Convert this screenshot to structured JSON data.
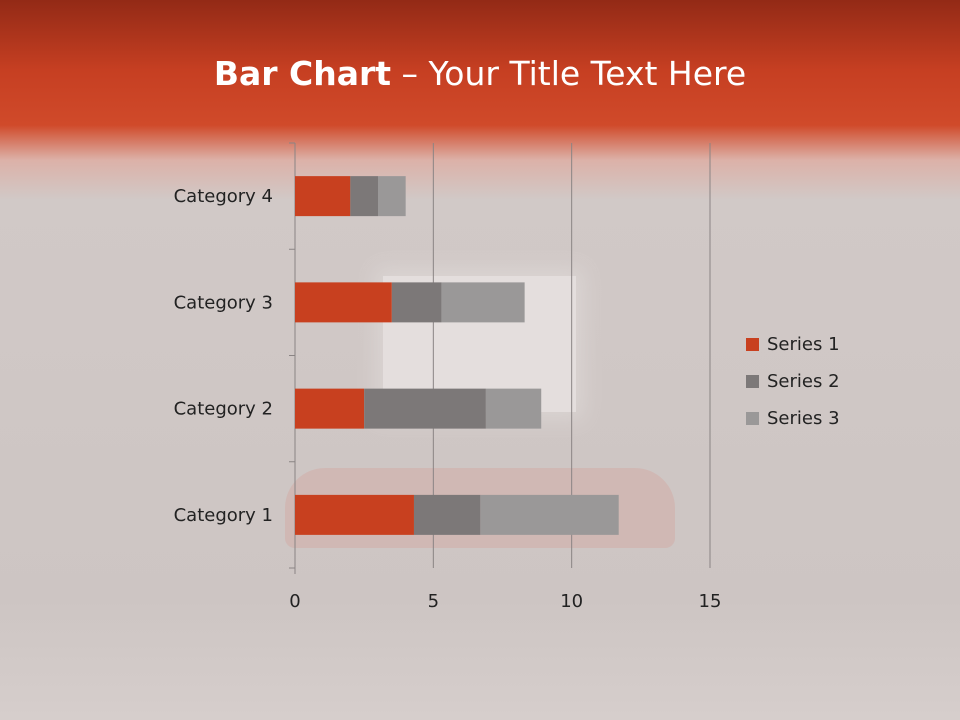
{
  "title": {
    "bold": "Bar Chart",
    "rest": " – Your Title Text Here"
  },
  "chart_data": {
    "type": "bar",
    "orientation": "horizontal",
    "stacked": true,
    "categories": [
      "Category 1",
      "Category 2",
      "Category 3",
      "Category 4"
    ],
    "series": [
      {
        "name": "Series 1",
        "values": [
          4.3,
          2.5,
          3.5,
          2
        ],
        "color": "#c8401f"
      },
      {
        "name": "Series 2",
        "values": [
          2.4,
          4.4,
          1.8,
          1
        ],
        "color": "#7c7878"
      },
      {
        "name": "Series 3",
        "values": [
          5,
          2,
          3,
          1
        ],
        "color": "#9a9898"
      }
    ],
    "xlim": [
      0,
      15
    ],
    "xticks": [
      "0",
      "5",
      "10",
      "15"
    ],
    "grid": true,
    "legend": "right"
  }
}
